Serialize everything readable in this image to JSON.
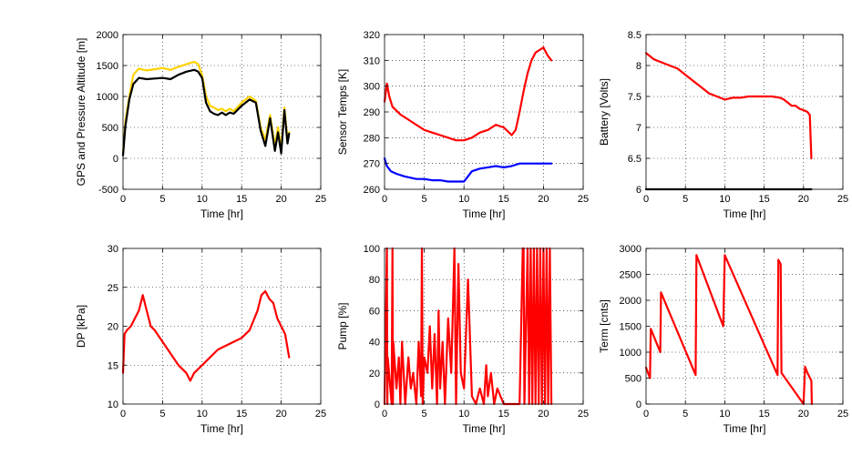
{
  "chart_data": [
    {
      "type": "line",
      "xlabel": "Time [hr]",
      "ylabel": "GPS and Pressure Altitude [m]",
      "xlim": [
        0,
        25
      ],
      "ylim": [
        -500,
        2000
      ],
      "xticks": [
        "0",
        "5",
        "10",
        "15",
        "20",
        "25"
      ],
      "yticks": [
        "-500",
        "0",
        "500",
        "1000",
        "1500",
        "2000"
      ],
      "grid": true,
      "series": [
        {
          "color": "#ffd200",
          "x": [
            0,
            0.3,
            0.8,
            1.3,
            2,
            3,
            4,
            5,
            6,
            7,
            8,
            9,
            9.5,
            10,
            10.5,
            11,
            11.5,
            12,
            12.5,
            13,
            13.5,
            14,
            15,
            16,
            16.8,
            17.4,
            18,
            18.6,
            19.2,
            19.6,
            20,
            20.4,
            20.8,
            21
          ],
          "y": [
            80,
            600,
            1000,
            1350,
            1450,
            1420,
            1440,
            1460,
            1430,
            1480,
            1520,
            1560,
            1520,
            1350,
            1000,
            850,
            820,
            780,
            800,
            760,
            800,
            760,
            900,
            1000,
            930,
            500,
            300,
            700,
            200,
            500,
            150,
            820,
            300,
            420
          ]
        },
        {
          "color": "#000000",
          "x": [
            0,
            0.3,
            0.8,
            1.3,
            2,
            3,
            4,
            5,
            6,
            7,
            8,
            9,
            9.5,
            10,
            10.5,
            11,
            11.5,
            12,
            12.5,
            13,
            13.5,
            14,
            15,
            16,
            16.8,
            17.4,
            18,
            18.6,
            19.2,
            19.6,
            20,
            20.4,
            20.8,
            21
          ],
          "y": [
            50,
            520,
            950,
            1200,
            1300,
            1280,
            1290,
            1300,
            1280,
            1350,
            1400,
            1430,
            1400,
            1300,
            900,
            760,
            720,
            700,
            740,
            700,
            740,
            720,
            850,
            950,
            900,
            450,
            200,
            650,
            120,
            420,
            80,
            780,
            240,
            400
          ]
        }
      ]
    },
    {
      "type": "line",
      "xlabel": "Time [hr]",
      "ylabel": "Sensor Temps [K]",
      "xlim": [
        0,
        25
      ],
      "ylim": [
        260,
        320
      ],
      "xticks": [
        "0",
        "5",
        "10",
        "15",
        "20",
        "25"
      ],
      "yticks": [
        "260",
        "270",
        "280",
        "290",
        "300",
        "310",
        "320"
      ],
      "grid": true,
      "series": [
        {
          "color": "#ff0000",
          "x": [
            0,
            0.3,
            0.6,
            1,
            2,
            3,
            4,
            5,
            6,
            7,
            8,
            9,
            10,
            11,
            12,
            13,
            14,
            15,
            16,
            16.5,
            17,
            17.5,
            18,
            18.5,
            19,
            19.5,
            20,
            20.5,
            21
          ],
          "y": [
            294,
            301,
            296,
            292,
            289,
            287,
            285,
            283,
            282,
            281,
            280,
            279,
            279,
            280,
            282,
            283,
            285,
            284,
            281,
            283,
            290,
            298,
            305,
            310,
            313,
            314,
            315,
            312,
            310
          ]
        },
        {
          "color": "#0000ff",
          "x": [
            0,
            0.3,
            0.8,
            1.5,
            2.5,
            4,
            5,
            6,
            7,
            8,
            9,
            10,
            10.5,
            11,
            12,
            13,
            14,
            15,
            16,
            17,
            18,
            19,
            20,
            21
          ],
          "y": [
            272,
            269,
            267,
            266,
            265,
            264,
            264,
            263.5,
            263.5,
            263,
            263,
            263,
            265,
            267,
            268,
            268.5,
            269,
            268.5,
            269,
            270,
            270,
            270,
            270,
            270
          ]
        }
      ]
    },
    {
      "type": "line",
      "xlabel": "Time [hr]",
      "ylabel": "Battery [Volts]",
      "xlim": [
        0,
        25
      ],
      "ylim": [
        6,
        8.5
      ],
      "xticks": [
        "0",
        "5",
        "10",
        "15",
        "20",
        "25"
      ],
      "yticks": [
        "6",
        "6.5",
        "7",
        "7.5",
        "8",
        "8.5"
      ],
      "grid": true,
      "series": [
        {
          "color": "#ff0000",
          "x": [
            0,
            0.5,
            1,
            2,
            3,
            4,
            5,
            6,
            7,
            8,
            9,
            10,
            11,
            12,
            13,
            14,
            15,
            16,
            17,
            17.5,
            18,
            18.5,
            19,
            19.5,
            20,
            20.5,
            20.8,
            21
          ],
          "y": [
            8.2,
            8.15,
            8.1,
            8.05,
            8.0,
            7.95,
            7.85,
            7.75,
            7.65,
            7.55,
            7.5,
            7.45,
            7.48,
            7.48,
            7.5,
            7.5,
            7.5,
            7.5,
            7.48,
            7.45,
            7.4,
            7.35,
            7.35,
            7.3,
            7.28,
            7.25,
            7.2,
            6.5
          ]
        },
        {
          "color": "#000000",
          "x": [
            0,
            21
          ],
          "y": [
            6,
            6
          ]
        }
      ]
    },
    {
      "type": "line",
      "xlabel": "Time [hr]",
      "ylabel": "DP [kPa]",
      "xlim": [
        0,
        25
      ],
      "ylim": [
        10,
        30
      ],
      "xticks": [
        "0",
        "5",
        "10",
        "15",
        "20",
        "25"
      ],
      "yticks": [
        "10",
        "15",
        "20",
        "25",
        "30"
      ],
      "grid": true,
      "series": [
        {
          "color": "#ff0000",
          "x": [
            0,
            0.2,
            0.5,
            1,
            1.5,
            2,
            2.5,
            3,
            3.5,
            4,
            5,
            6,
            7,
            8,
            8.5,
            9,
            10,
            11,
            12,
            13,
            14,
            15,
            16,
            17,
            17.5,
            18,
            18.5,
            19,
            19.5,
            20,
            20.5,
            21
          ],
          "y": [
            14,
            19,
            19.5,
            20,
            21,
            22,
            24,
            22,
            20,
            19.5,
            18,
            16.5,
            15,
            14,
            13,
            14,
            15,
            16,
            17,
            17.5,
            18,
            18.5,
            19.5,
            22,
            24,
            24.5,
            23.5,
            23,
            21,
            20,
            19,
            16
          ]
        }
      ]
    },
    {
      "type": "line",
      "xlabel": "Time [hr]",
      "ylabel": "Pump [%]",
      "xlim": [
        0,
        25
      ],
      "ylim": [
        0,
        100
      ],
      "xticks": [
        "0",
        "5",
        "10",
        "15",
        "20",
        "25"
      ],
      "yticks": [
        "0",
        "20",
        "40",
        "60",
        "80",
        "100"
      ],
      "grid": true,
      "series": [
        {
          "color": "#ff0000",
          "x": [
            0,
            0.3,
            0.35,
            0.4,
            0.9,
            1,
            1.05,
            1.1,
            1.5,
            1.8,
            2,
            2.2,
            2.6,
            3,
            3.3,
            3.6,
            4,
            4.3,
            4.6,
            4.7,
            4.8,
            5,
            5.4,
            5.7,
            6,
            6.3,
            6.6,
            6.8,
            7,
            7.3,
            7.6,
            8,
            8.4,
            8.8,
            9,
            9.3,
            9.6,
            10,
            10.5,
            11,
            11.5,
            12,
            12.5,
            12.8,
            13,
            13.4,
            13.8,
            14.2,
            15,
            16,
            17,
            17.4,
            17.5,
            17.6,
            18,
            18.2,
            18.4,
            18.6,
            18.8,
            19,
            19.2,
            19.4,
            19.6,
            19.8,
            20,
            20.2,
            20.4,
            20.6,
            20.8,
            21
          ],
          "y": [
            0,
            100,
            0,
            30,
            0,
            100,
            0,
            40,
            10,
            30,
            0,
            40,
            0,
            30,
            10,
            20,
            0,
            40,
            5,
            100,
            0,
            30,
            20,
            50,
            10,
            45,
            0,
            60,
            10,
            40,
            0,
            55,
            20,
            100,
            0,
            90,
            20,
            10,
            80,
            5,
            0,
            10,
            0,
            25,
            5,
            20,
            0,
            10,
            0,
            0,
            0,
            100,
            100,
            0,
            100,
            0,
            100,
            0,
            100,
            0,
            100,
            0,
            100,
            0,
            100,
            0,
            100,
            0,
            100,
            0
          ]
        }
      ]
    },
    {
      "type": "line",
      "xlabel": "Time [hr]",
      "ylabel": "Term [cnts]",
      "xlim": [
        0,
        25
      ],
      "ylim": [
        0,
        3000
      ],
      "xticks": [
        "0",
        "5",
        "10",
        "15",
        "20",
        "25"
      ],
      "yticks": [
        "0",
        "500",
        "1000",
        "1500",
        "2000",
        "2500",
        "3000"
      ],
      "grid": true,
      "series": [
        {
          "color": "#ff0000",
          "x": [
            0,
            0.5,
            0.6,
            1.8,
            1.9,
            6.3,
            6.4,
            9.8,
            10,
            16.7,
            16.8,
            17.1,
            17.2,
            20,
            20.2,
            20.5,
            21,
            21.05
          ],
          "y": [
            700,
            500,
            1450,
            1000,
            2150,
            560,
            2870,
            1500,
            2870,
            560,
            2780,
            2700,
            600,
            0,
            720,
            600,
            450,
            0
          ]
        }
      ]
    }
  ]
}
